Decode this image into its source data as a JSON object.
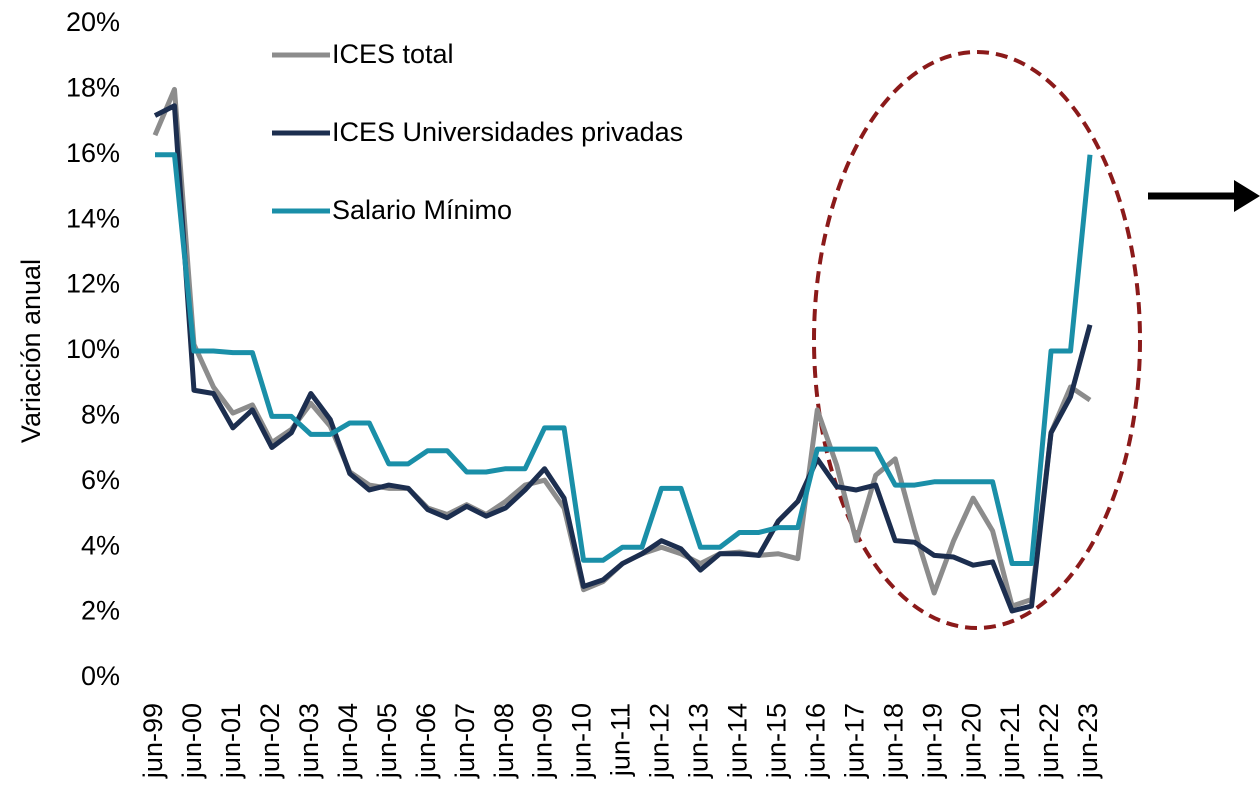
{
  "chart_data": {
    "type": "line",
    "y_label": "Variación anual",
    "categories": [
      "jun-99",
      null,
      "jun-00",
      null,
      "jun-01",
      null,
      "jun-02",
      null,
      "jun-03",
      null,
      "jun-04",
      null,
      "jun-05",
      null,
      "jun-06",
      null,
      "jun-07",
      null,
      "jun-08",
      null,
      "jun-09",
      null,
      "jun-10",
      null,
      "jun-11",
      null,
      "jun-12",
      null,
      "jun-13",
      null,
      "jun-14",
      null,
      "jun-15",
      null,
      "jun-16",
      null,
      "jun-17",
      null,
      "jun-18",
      null,
      "jun-19",
      null,
      "jun-20",
      null,
      "jun-21",
      null,
      "jun-22",
      null,
      "jun-23"
    ],
    "series": [
      {
        "name": "ICES total",
        "color": "#8c8c8c",
        "values": [
          16.6,
          18,
          10.2,
          8.9,
          8.1,
          8.35,
          7.2,
          7.6,
          8.4,
          7.7,
          6.3,
          5.9,
          5.8,
          5.8,
          5.2,
          5.0,
          5.3,
          5.0,
          5.4,
          5.9,
          6.05,
          5.2,
          2.7,
          2.95,
          3.5,
          3.8,
          4.0,
          3.8,
          3.5,
          3.8,
          3.85,
          3.75,
          3.8,
          3.65,
          8.2,
          6.5,
          4.2,
          6.2,
          6.7,
          4.5,
          2.6,
          4.2,
          5.5,
          4.5,
          2.2,
          2.4,
          7.5,
          8.9,
          8.5
        ]
      },
      {
        "name": "ICES Universidades privadas",
        "color": "#1c2e4f",
        "values": [
          17.2,
          17.5,
          8.8,
          8.7,
          7.65,
          8.2,
          7.05,
          7.5,
          8.7,
          7.9,
          6.25,
          5.75,
          5.9,
          5.8,
          5.15,
          4.9,
          5.25,
          4.95,
          5.2,
          5.75,
          6.4,
          5.5,
          2.8,
          3.0,
          3.5,
          3.8,
          4.2,
          3.95,
          3.3,
          3.8,
          3.8,
          3.75,
          4.8,
          5.4,
          6.7,
          5.85,
          5.75,
          5.9,
          4.2,
          4.15,
          3.75,
          3.7,
          3.45,
          3.55,
          2.05,
          2.2,
          7.5,
          8.6,
          10.8
        ]
      },
      {
        "name": "Salario Mínimo",
        "color": "#1a8fa8",
        "values": [
          16,
          16,
          10,
          10,
          9.95,
          9.95,
          8,
          8,
          7.45,
          7.45,
          7.8,
          7.8,
          6.55,
          6.55,
          6.95,
          6.95,
          6.3,
          6.3,
          6.4,
          6.4,
          7.65,
          7.65,
          3.6,
          3.6,
          4,
          4,
          5.8,
          5.8,
          4,
          4,
          4.45,
          4.45,
          4.6,
          4.6,
          7,
          7,
          7,
          7,
          5.9,
          5.9,
          6,
          6,
          6,
          6,
          3.5,
          3.5,
          10,
          10,
          16
        ]
      }
    ],
    "ylim": [
      0,
      20
    ],
    "yticks": [
      {
        "value": 0,
        "label": "0%"
      },
      {
        "value": 2,
        "label": "2%"
      },
      {
        "value": 4,
        "label": "4%"
      },
      {
        "value": 6,
        "label": "6%"
      },
      {
        "value": 8,
        "label": "8%"
      },
      {
        "value": 10,
        "label": "10%"
      },
      {
        "value": 12,
        "label": "12%"
      },
      {
        "value": 14,
        "label": "14%"
      },
      {
        "value": 16,
        "label": "16%"
      },
      {
        "value": 18,
        "label": "18%"
      },
      {
        "value": 20,
        "label": "20%"
      }
    ],
    "grid": false
  }
}
